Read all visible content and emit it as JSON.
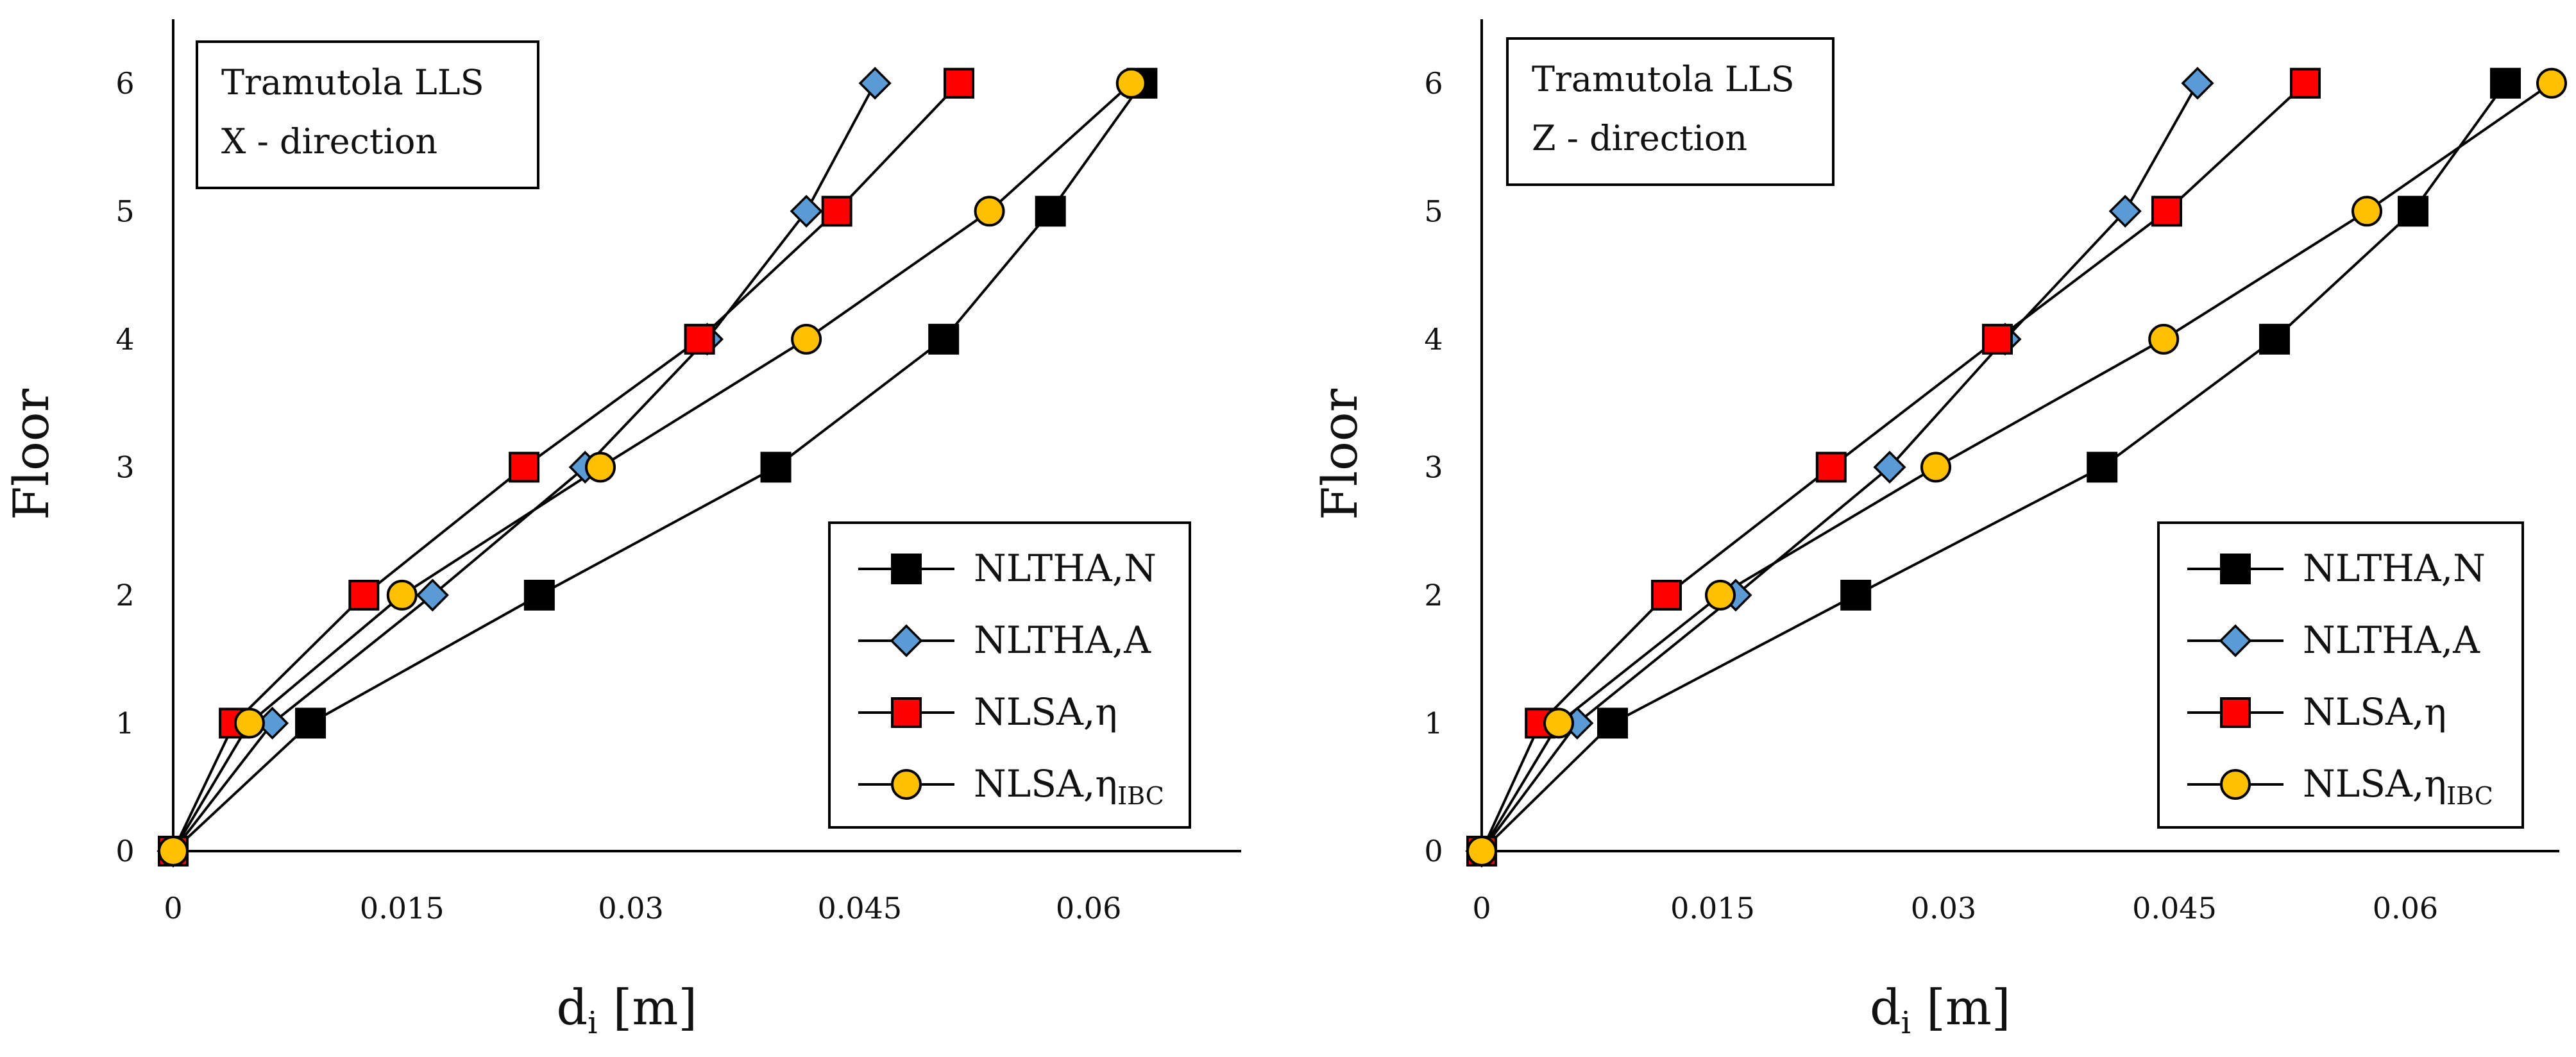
{
  "colors": {
    "nltha_n": "#000000",
    "nltha_a": "#5b9bd5",
    "nlsa_eta": "#ff0000",
    "nlsa_eta_ibc": "#ffc000",
    "line": "#000000"
  },
  "chart_data": [
    {
      "type": "line",
      "orientation": "horizontal-profile",
      "annotation": [
        "Tramutola LLS",
        "X - direction"
      ],
      "xlabel_main": "d",
      "xlabel_sub": "i",
      "xlabel_unit": " [m]",
      "ylabel": "Floor",
      "xlim": [
        0,
        0.07
      ],
      "ylim": [
        0,
        6.5
      ],
      "xticks": [
        0,
        0.015,
        0.03,
        0.045,
        0.06
      ],
      "xtick_labels": [
        "0",
        "0.015",
        "0.03",
        "0.045",
        "0.06"
      ],
      "yticks": [
        0,
        1,
        2,
        3,
        4,
        5,
        6
      ],
      "ytick_labels": [
        "0",
        "1",
        "2",
        "3",
        "4",
        "5",
        "6"
      ],
      "legend_position": "bottom-right",
      "floors": [
        0,
        1,
        2,
        3,
        4,
        5,
        6
      ],
      "series": [
        {
          "name": "NLTHA,N",
          "label_main": "NLTHA,N",
          "label_sub": "",
          "marker": "square",
          "color": "#000000",
          "values": [
            0,
            0.009,
            0.024,
            0.0395,
            0.0505,
            0.0575,
            0.0635
          ]
        },
        {
          "name": "NLTHA,A",
          "label_main": "NLTHA,A",
          "label_sub": "",
          "marker": "diamond",
          "color": "#5b9bd5",
          "values": [
            0,
            0.0065,
            0.017,
            0.027,
            0.035,
            0.0415,
            0.046
          ]
        },
        {
          "name": "NLSA,η",
          "label_main": "NLSA,η",
          "label_sub": "",
          "marker": "square",
          "color": "#ff0000",
          "values": [
            0,
            0.004,
            0.0125,
            0.023,
            0.0345,
            0.0435,
            0.0515
          ]
        },
        {
          "name": "NLSA,ηIBC",
          "label_main": "NLSA,η",
          "label_sub": "IBC",
          "marker": "circle",
          "color": "#ffc000",
          "values": [
            0,
            0.005,
            0.015,
            0.028,
            0.0415,
            0.0535,
            0.0628
          ]
        }
      ]
    },
    {
      "type": "line",
      "orientation": "horizontal-profile",
      "annotation": [
        "Tramutola LLS",
        "Z - direction"
      ],
      "xlabel_main": "d",
      "xlabel_sub": "i",
      "xlabel_unit": " [m]",
      "ylabel": "Floor",
      "xlim": [
        0,
        0.07
      ],
      "ylim": [
        0,
        6.5
      ],
      "xticks": [
        0,
        0.015,
        0.03,
        0.045,
        0.06
      ],
      "xtick_labels": [
        "0",
        "0.015",
        "0.03",
        "0.045",
        "0.06"
      ],
      "yticks": [
        0,
        1,
        2,
        3,
        4,
        5,
        6
      ],
      "ytick_labels": [
        "0",
        "1",
        "2",
        "3",
        "4",
        "5",
        "6"
      ],
      "legend_position": "bottom-right",
      "floors": [
        0,
        1,
        2,
        3,
        4,
        5,
        6
      ],
      "series": [
        {
          "name": "NLTHA,N",
          "label_main": "NLTHA,N",
          "label_sub": "",
          "marker": "square",
          "color": "#000000",
          "values": [
            0,
            0.0085,
            0.0243,
            0.0403,
            0.0515,
            0.0605,
            0.0665
          ]
        },
        {
          "name": "NLTHA,A",
          "label_main": "NLTHA,A",
          "label_sub": "",
          "marker": "diamond",
          "color": "#5b9bd5",
          "values": [
            0,
            0.0062,
            0.0165,
            0.0265,
            0.034,
            0.0418,
            0.0465
          ]
        },
        {
          "name": "NLSA,η",
          "label_main": "NLSA,η",
          "label_sub": "",
          "marker": "square",
          "color": "#ff0000",
          "values": [
            0,
            0.0038,
            0.012,
            0.0227,
            0.0335,
            0.0445,
            0.0535
          ]
        },
        {
          "name": "NLSA,ηIBC",
          "label_main": "NLSA,η",
          "label_sub": "IBC",
          "marker": "circle",
          "color": "#ffc000",
          "values": [
            0,
            0.005,
            0.0155,
            0.0295,
            0.0443,
            0.0575,
            0.0695
          ]
        }
      ]
    }
  ]
}
